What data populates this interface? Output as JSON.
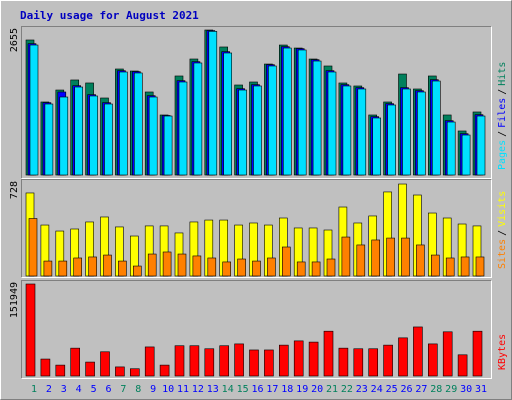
{
  "title": "Daily usage for August 2021",
  "chart_data": [
    {
      "type": "bar",
      "ylim": [
        0,
        2655
      ],
      "yticks": [
        2655
      ],
      "legend_separator": "/",
      "series": [
        {
          "name": "Hits",
          "color": "#00805c",
          "values": [
            2472,
            1337,
            1556,
            1740,
            1685,
            1410,
            1941,
            1904,
            1520,
            1099,
            1813,
            2124,
            2655,
            2344,
            1648,
            1703,
            2032,
            2380,
            2325,
            2124,
            1996,
            1685,
            1630,
            1099,
            1337,
            1849,
            1575,
            1813,
            1099,
            806,
            1154
          ]
        },
        {
          "name": "Files",
          "color": "#0000ff",
          "values": [
            2405,
            1325,
            1520,
            1636,
            1472,
            1325,
            1911,
            1893,
            1453,
            1090,
            1728,
            2076,
            2645,
            2259,
            1581,
            1655,
            2021,
            2350,
            2314,
            2112,
            1911,
            1655,
            1600,
            1069,
            1307,
            1600,
            1545,
            1746,
            995,
            757,
            1105
          ]
        },
        {
          "name": "Pages",
          "color": "#00e0ff",
          "values": [
            2380,
            1300,
            1428,
            1611,
            1447,
            1300,
            1886,
            1868,
            1428,
            1080,
            1703,
            2051,
            2630,
            2234,
            1556,
            1630,
            1996,
            2325,
            2289,
            2087,
            1886,
            1630,
            1575,
            1044,
            1282,
            1575,
            1520,
            1721,
            970,
            732,
            1080
          ]
        }
      ]
    },
    {
      "type": "bar",
      "ylim": [
        0,
        728
      ],
      "yticks": [
        728
      ],
      "legend_separator": "/",
      "series": [
        {
          "name": "Visits",
          "color": "#ffff00",
          "values": [
            650,
            399,
            352,
            368,
            423,
            462,
            384,
            313,
            392,
            392,
            337,
            423,
            438,
            438,
            399,
            415,
            399,
            454,
            376,
            376,
            360,
            540,
            415,
            470,
            658,
            720,
            634,
            493,
            454,
            407,
            392
          ]
        },
        {
          "name": "Sites",
          "color": "#ff8000",
          "values": [
            450,
            117,
            117,
            141,
            149,
            164,
            117,
            78,
            172,
            188,
            172,
            157,
            141,
            110,
            133,
            117,
            141,
            227,
            110,
            110,
            133,
            305,
            243,
            282,
            297,
            297,
            243,
            164,
            141,
            149,
            149
          ]
        }
      ]
    },
    {
      "type": "bar",
      "ylim": [
        0,
        151949
      ],
      "yticks": [
        151949
      ],
      "legend_separator": "/",
      "categories": [
        "1",
        "2",
        "3",
        "4",
        "5",
        "6",
        "7",
        "8",
        "9",
        "10",
        "11",
        "12",
        "13",
        "14",
        "15",
        "16",
        "17",
        "18",
        "19",
        "20",
        "21",
        "22",
        "23",
        "24",
        "25",
        "26",
        "27",
        "28",
        "29",
        "30",
        "31"
      ],
      "category_colors": [
        "#00805c",
        "#0000ff",
        "#0000ff",
        "#0000ff",
        "#0000ff",
        "#0000ff",
        "#00805c",
        "#00805c",
        "#0000ff",
        "#0000ff",
        "#0000ff",
        "#0000ff",
        "#0000ff",
        "#00805c",
        "#00805c",
        "#0000ff",
        "#0000ff",
        "#0000ff",
        "#0000ff",
        "#0000ff",
        "#00805c",
        "#00805c",
        "#0000ff",
        "#0000ff",
        "#0000ff",
        "#0000ff",
        "#0000ff",
        "#00805c",
        "#00805c",
        "#0000ff",
        "#0000ff"
      ],
      "series": [
        {
          "name": "KBytes",
          "color": "#ff0000",
          "values": [
            151949,
            28000,
            18000,
            46000,
            23000,
            40000,
            15000,
            12000,
            48000,
            18000,
            50000,
            50000,
            45000,
            50000,
            53000,
            43000,
            43000,
            51000,
            58000,
            56000,
            74000,
            46000,
            45000,
            45000,
            51000,
            63000,
            81000,
            53000,
            73000,
            35000,
            74000
          ]
        }
      ]
    }
  ]
}
